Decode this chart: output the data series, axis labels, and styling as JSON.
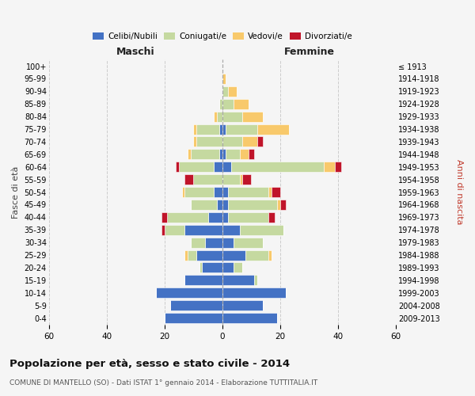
{
  "age_groups": [
    "0-4",
    "5-9",
    "10-14",
    "15-19",
    "20-24",
    "25-29",
    "30-34",
    "35-39",
    "40-44",
    "45-49",
    "50-54",
    "55-59",
    "60-64",
    "65-69",
    "70-74",
    "75-79",
    "80-84",
    "85-89",
    "90-94",
    "95-99",
    "100+"
  ],
  "birth_years": [
    "2009-2013",
    "2004-2008",
    "1999-2003",
    "1994-1998",
    "1989-1993",
    "1984-1988",
    "1979-1983",
    "1974-1978",
    "1969-1973",
    "1964-1968",
    "1959-1963",
    "1954-1958",
    "1949-1953",
    "1944-1948",
    "1939-1943",
    "1934-1938",
    "1929-1933",
    "1924-1928",
    "1919-1923",
    "1914-1918",
    "≤ 1913"
  ],
  "male_celibi": [
    20,
    18,
    23,
    13,
    7,
    9,
    6,
    13,
    5,
    2,
    3,
    0,
    3,
    1,
    0,
    1,
    0,
    0,
    0,
    0,
    0
  ],
  "male_coniugati": [
    0,
    0,
    0,
    0,
    1,
    3,
    5,
    7,
    14,
    9,
    10,
    10,
    12,
    10,
    9,
    8,
    2,
    1,
    0,
    0,
    0
  ],
  "male_vedovi": [
    0,
    0,
    0,
    0,
    0,
    1,
    0,
    0,
    0,
    0,
    1,
    0,
    0,
    1,
    1,
    1,
    1,
    0,
    0,
    0,
    0
  ],
  "male_divorziati": [
    0,
    0,
    0,
    0,
    0,
    0,
    0,
    1,
    2,
    0,
    0,
    3,
    1,
    0,
    0,
    0,
    0,
    0,
    0,
    0,
    0
  ],
  "female_celibi": [
    19,
    14,
    22,
    11,
    4,
    8,
    4,
    6,
    2,
    2,
    2,
    0,
    3,
    1,
    0,
    1,
    0,
    0,
    0,
    0,
    0
  ],
  "female_coniugati": [
    0,
    0,
    0,
    1,
    3,
    8,
    10,
    15,
    14,
    17,
    14,
    6,
    32,
    5,
    7,
    11,
    7,
    4,
    2,
    0,
    0
  ],
  "female_vedovi": [
    0,
    0,
    0,
    0,
    0,
    1,
    0,
    0,
    0,
    1,
    1,
    1,
    4,
    3,
    5,
    11,
    7,
    5,
    3,
    1,
    0
  ],
  "female_divorziati": [
    0,
    0,
    0,
    0,
    0,
    0,
    0,
    0,
    2,
    2,
    3,
    3,
    2,
    2,
    2,
    0,
    0,
    0,
    0,
    0,
    0
  ],
  "color_celibi": "#4472c4",
  "color_coniugati": "#c5d9a0",
  "color_vedovi": "#f8c96b",
  "color_divorziati": "#c0152a",
  "title": "Popolazione per età, sesso e stato civile - 2014",
  "subtitle": "COMUNE DI MANTELLO (SO) - Dati ISTAT 1° gennaio 2014 - Elaborazione TUTTITALIA.IT",
  "xlabel_left": "Maschi",
  "xlabel_right": "Femmine",
  "ylabel_left": "Fasce di età",
  "ylabel_right": "Anni di nascita",
  "xlim": 60,
  "background_color": "#f5f5f5",
  "grid_color": "#cccccc"
}
